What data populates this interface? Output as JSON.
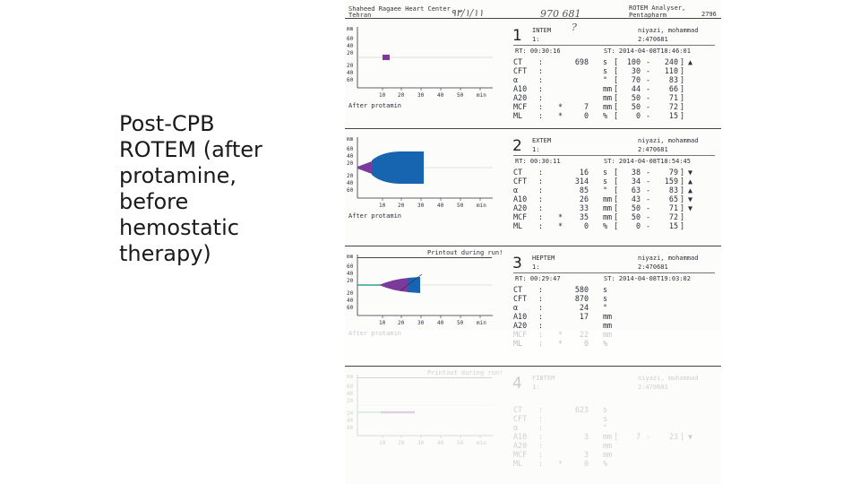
{
  "slide": {
    "title": "Post-CPB ROTEM (after protamine, before hemostatic therapy)"
  },
  "report": {
    "hospital": [
      "Shaheed Ragaee Heart Center",
      "Tehran"
    ],
    "analyser": "ROTEM Analyser, Pentapharm",
    "analyser_code": "2796",
    "handwritten_date": "۹۳/۱/۱۱",
    "handwritten_id": "970 681",
    "handwritten_mark": "?",
    "chart_axis": {
      "upper_ticks": [
        "mm",
        "60",
        "40",
        "20"
      ],
      "lower_ticks": [
        "20",
        "40",
        "60"
      ],
      "x_ticks": [
        "10",
        "20",
        "30",
        "40",
        "50",
        "min"
      ]
    },
    "panels": [
      {
        "number": "1",
        "test": "INTEM",
        "sub": "1:",
        "patient": "niyazi, mohammad",
        "pid": "2:470681",
        "rt": "RT:   00:30:16",
        "st": "ST:  2014-04-08T18:46:01",
        "caption": "After protamin",
        "printout": "",
        "rows": [
          {
            "name": "CT",
            "star": "",
            "value": "698",
            "unit": "s",
            "lo": "100",
            "hi": "240",
            "flag": "▲"
          },
          {
            "name": "CFT",
            "star": "",
            "value": "",
            "unit": "s",
            "lo": "30",
            "hi": "110",
            "flag": ""
          },
          {
            "name": "α",
            "star": "",
            "value": "",
            "unit": "°",
            "lo": "70",
            "hi": "83",
            "flag": ""
          },
          {
            "name": "A10",
            "star": "",
            "value": "",
            "unit": "mm",
            "lo": "44",
            "hi": "66",
            "flag": ""
          },
          {
            "name": "A20",
            "star": "",
            "value": "",
            "unit": "mm",
            "lo": "50",
            "hi": "71",
            "flag": ""
          },
          {
            "name": "MCF",
            "star": "*",
            "value": "7",
            "unit": "mm",
            "lo": "50",
            "hi": "72",
            "flag": ""
          },
          {
            "name": "ML",
            "star": "*",
            "value": "0",
            "unit": "%",
            "lo": "0",
            "hi": "15",
            "flag": ""
          }
        ]
      },
      {
        "number": "2",
        "test": "EXTEM",
        "sub": "1:",
        "patient": "niyazi, mohammad",
        "pid": "2:470681",
        "rt": "RT:   00:30:11",
        "st": "ST:  2014-04-08T18:54:45",
        "caption": "After protamin",
        "printout": "",
        "rows": [
          {
            "name": "CT",
            "star": "",
            "value": "16",
            "unit": "s",
            "lo": "38",
            "hi": "79",
            "flag": "▼"
          },
          {
            "name": "CFT",
            "star": "",
            "value": "314",
            "unit": "s",
            "lo": "34",
            "hi": "159",
            "flag": "▲"
          },
          {
            "name": "α",
            "star": "",
            "value": "85",
            "unit": "°",
            "lo": "63",
            "hi": "83",
            "flag": "▲"
          },
          {
            "name": "A10",
            "star": "",
            "value": "26",
            "unit": "mm",
            "lo": "43",
            "hi": "65",
            "flag": "▼"
          },
          {
            "name": "A20",
            "star": "",
            "value": "33",
            "unit": "mm",
            "lo": "50",
            "hi": "71",
            "flag": "▼"
          },
          {
            "name": "MCF",
            "star": "*",
            "value": "35",
            "unit": "mm",
            "lo": "50",
            "hi": "72",
            "flag": ""
          },
          {
            "name": "ML",
            "star": "*",
            "value": "0",
            "unit": "%",
            "lo": "0",
            "hi": "15",
            "flag": ""
          }
        ]
      },
      {
        "number": "3",
        "test": "HEPTEM",
        "sub": "1:",
        "patient": "niyazi, mohammad",
        "pid": "2:470681",
        "rt": "RT:   00:29:47",
        "st": "ST:  2014-04-08T19:03:02",
        "caption": "After protamin",
        "printout": "Printout during run!",
        "rows": [
          {
            "name": "CT",
            "star": "",
            "value": "580",
            "unit": "s",
            "lo": "",
            "hi": "",
            "flag": ""
          },
          {
            "name": "CFT",
            "star": "",
            "value": "870",
            "unit": "s",
            "lo": "",
            "hi": "",
            "flag": ""
          },
          {
            "name": "α",
            "star": "",
            "value": "24",
            "unit": "°",
            "lo": "",
            "hi": "",
            "flag": ""
          },
          {
            "name": "A10",
            "star": "",
            "value": "17",
            "unit": "mm",
            "lo": "",
            "hi": "",
            "flag": ""
          },
          {
            "name": "A20",
            "star": "",
            "value": "",
            "unit": "mm",
            "lo": "",
            "hi": "",
            "flag": ""
          },
          {
            "name": "MCF",
            "star": "*",
            "value": "22",
            "unit": "mm",
            "lo": "",
            "hi": "",
            "flag": ""
          },
          {
            "name": "ML",
            "star": "*",
            "value": "0",
            "unit": "%",
            "lo": "",
            "hi": "",
            "flag": ""
          }
        ]
      },
      {
        "number": "4",
        "test": "FIBTEM",
        "sub": "1:",
        "patient": "niyazi, mohammad",
        "pid": "2:470681",
        "rt": "",
        "st": "",
        "caption": "",
        "printout": "Printout during run!",
        "rows": [
          {
            "name": "CT",
            "star": "",
            "value": "623",
            "unit": "s",
            "lo": "",
            "hi": "",
            "flag": ""
          },
          {
            "name": "CFT",
            "star": "",
            "value": "",
            "unit": "s",
            "lo": "",
            "hi": "",
            "flag": ""
          },
          {
            "name": "α",
            "star": "",
            "value": "",
            "unit": "°",
            "lo": "",
            "hi": "",
            "flag": ""
          },
          {
            "name": "A10",
            "star": "",
            "value": "3",
            "unit": "mm",
            "lo": "7",
            "hi": "23",
            "flag": "▼"
          },
          {
            "name": "A20",
            "star": "",
            "value": "",
            "unit": "mm",
            "lo": "",
            "hi": "",
            "flag": ""
          },
          {
            "name": "MCF",
            "star": "",
            "value": "3",
            "unit": "mm",
            "lo": "",
            "hi": "",
            "flag": ""
          },
          {
            "name": "ML",
            "star": "*",
            "value": "0",
            "unit": "%",
            "lo": "",
            "hi": "",
            "flag": ""
          }
        ]
      }
    ]
  },
  "colors": {
    "purple": "#7b3a9c",
    "blue": "#1764b0",
    "teal": "#2fa58a",
    "ink": "#2b2f3a"
  }
}
